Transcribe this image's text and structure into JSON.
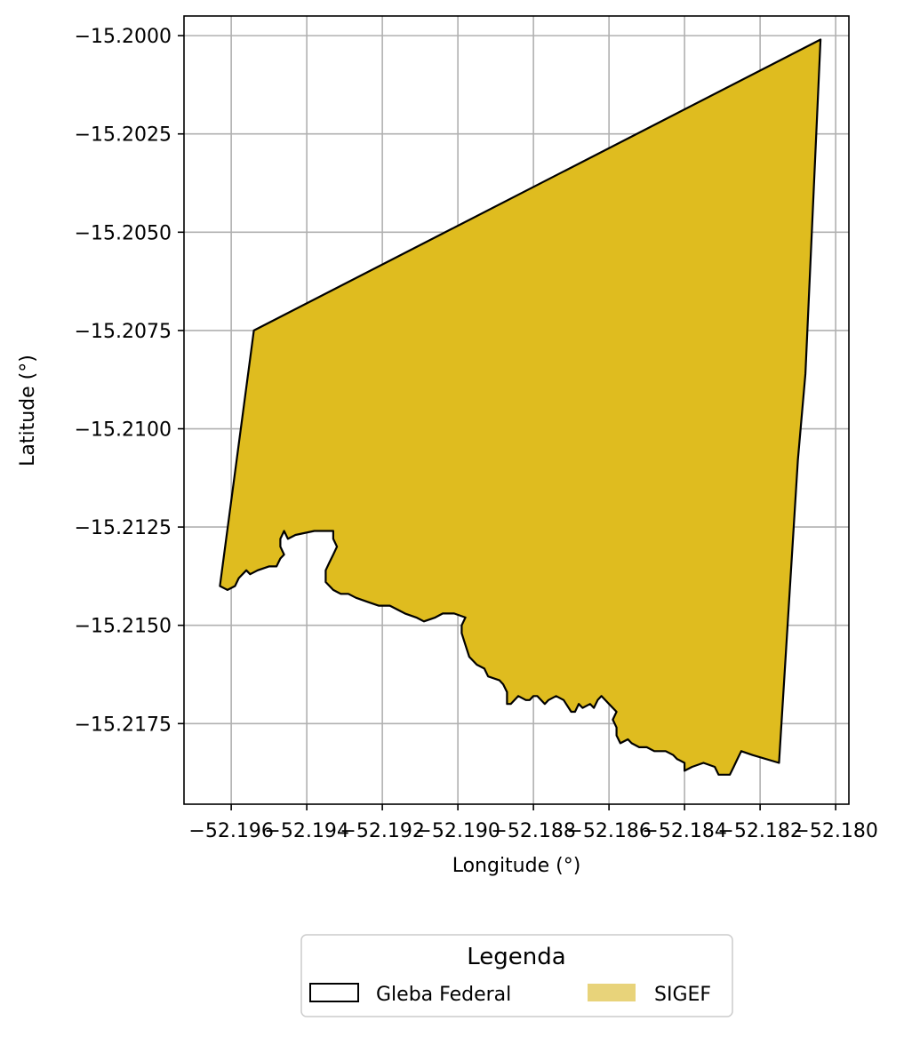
{
  "chart_data": {
    "type": "map",
    "xlabel": "Longitude (°)",
    "ylabel": "Latitude (°)",
    "xlim": [
      -52.19725,
      -52.17965
    ],
    "ylim": [
      -15.21955,
      -15.1995
    ],
    "xticks": [
      {
        "value": -52.196,
        "label": "−52.196"
      },
      {
        "value": -52.194,
        "label": "−52.194"
      },
      {
        "value": -52.192,
        "label": "−52.192"
      },
      {
        "value": -52.19,
        "label": "−52.190"
      },
      {
        "value": -52.188,
        "label": "−52.188"
      },
      {
        "value": -52.186,
        "label": "−52.186"
      },
      {
        "value": -52.184,
        "label": "−52.184"
      },
      {
        "value": -52.182,
        "label": "−52.182"
      },
      {
        "value": -52.18,
        "label": "−52.180"
      }
    ],
    "yticks": [
      {
        "value": -15.2,
        "label": "−15.2000"
      },
      {
        "value": -15.2025,
        "label": "−15.2025"
      },
      {
        "value": -15.205,
        "label": "−15.2050"
      },
      {
        "value": -15.2075,
        "label": "−15.2075"
      },
      {
        "value": -15.21,
        "label": "−15.2100"
      },
      {
        "value": -15.2125,
        "label": "−15.2125"
      },
      {
        "value": -15.215,
        "label": "−15.2150"
      },
      {
        "value": -15.2175,
        "label": "−15.2175"
      }
    ],
    "grid": true,
    "polygon": {
      "fill": "#dfbc1f",
      "edge": "#000000",
      "coords": [
        [
          -52.1954,
          -15.2075
        ],
        [
          -52.1804,
          -15.2001
        ],
        [
          -52.1808,
          -15.2086
        ],
        [
          -52.181,
          -15.2108
        ],
        [
          -52.1815,
          -15.2185
        ],
        [
          -52.1822,
          -15.2183
        ],
        [
          -52.1825,
          -15.2182
        ],
        [
          -52.1826,
          -15.2184
        ],
        [
          -52.1827,
          -15.2186
        ],
        [
          -52.1828,
          -15.2188
        ],
        [
          -52.1831,
          -15.2188
        ],
        [
          -52.1832,
          -15.2186
        ],
        [
          -52.1835,
          -15.2185
        ],
        [
          -52.1838,
          -15.2186
        ],
        [
          -52.184,
          -15.2187
        ],
        [
          -52.184,
          -15.2185
        ],
        [
          -52.1842,
          -15.2184
        ],
        [
          -52.1843,
          -15.2183
        ],
        [
          -52.1845,
          -15.2182
        ],
        [
          -52.1848,
          -15.2182
        ],
        [
          -52.185,
          -15.2181
        ],
        [
          -52.1852,
          -15.2181
        ],
        [
          -52.1854,
          -15.218
        ],
        [
          -52.1855,
          -15.2179
        ],
        [
          -52.1857,
          -15.218
        ],
        [
          -52.1858,
          -15.2178
        ],
        [
          -52.1858,
          -15.2176
        ],
        [
          -52.1859,
          -15.2174
        ],
        [
          -52.1858,
          -15.2172
        ],
        [
          -52.186,
          -15.217
        ],
        [
          -52.1861,
          -15.2169
        ],
        [
          -52.1862,
          -15.2168
        ],
        [
          -52.1863,
          -15.2169
        ],
        [
          -52.1864,
          -15.2171
        ],
        [
          -52.1865,
          -15.217
        ],
        [
          -52.1867,
          -15.2171
        ],
        [
          -52.1868,
          -15.217
        ],
        [
          -52.1869,
          -15.2172
        ],
        [
          -52.187,
          -15.2172
        ],
        [
          -52.1872,
          -15.2169
        ],
        [
          -52.1874,
          -15.2168
        ],
        [
          -52.1876,
          -15.2169
        ],
        [
          -52.1877,
          -15.217
        ],
        [
          -52.1879,
          -15.2168
        ],
        [
          -52.188,
          -15.2168
        ],
        [
          -52.1881,
          -15.2169
        ],
        [
          -52.1882,
          -15.2169
        ],
        [
          -52.1884,
          -15.2168
        ],
        [
          -52.1886,
          -15.217
        ],
        [
          -52.1887,
          -15.217
        ],
        [
          -52.1887,
          -15.2167
        ],
        [
          -52.1888,
          -15.2165
        ],
        [
          -52.1889,
          -15.2164
        ],
        [
          -52.1892,
          -15.2163
        ],
        [
          -52.1893,
          -15.2161
        ],
        [
          -52.1895,
          -15.216
        ],
        [
          -52.1897,
          -15.2158
        ],
        [
          -52.1898,
          -15.2155
        ],
        [
          -52.1899,
          -15.2152
        ],
        [
          -52.1899,
          -15.215
        ],
        [
          -52.1898,
          -15.2148
        ],
        [
          -52.1901,
          -15.2147
        ],
        [
          -52.1904,
          -15.2147
        ],
        [
          -52.1906,
          -15.2148
        ],
        [
          -52.1909,
          -15.2149
        ],
        [
          -52.1911,
          -15.2148
        ],
        [
          -52.1914,
          -15.2147
        ],
        [
          -52.1916,
          -15.2146
        ],
        [
          -52.1918,
          -15.2145
        ],
        [
          -52.1921,
          -15.2145
        ],
        [
          -52.1924,
          -15.2144
        ],
        [
          -52.1927,
          -15.2143
        ],
        [
          -52.1929,
          -15.2142
        ],
        [
          -52.1931,
          -15.2142
        ],
        [
          -52.1933,
          -15.2141
        ],
        [
          -52.1935,
          -15.2139
        ],
        [
          -52.1935,
          -15.2136
        ],
        [
          -52.1934,
          -15.2134
        ],
        [
          -52.1933,
          -15.2132
        ],
        [
          -52.1932,
          -15.213
        ],
        [
          -52.1933,
          -15.2128
        ],
        [
          -52.1933,
          -15.2126
        ],
        [
          -52.1938,
          -15.2126
        ],
        [
          -52.1943,
          -15.2127
        ],
        [
          -52.1945,
          -15.2128
        ],
        [
          -52.1946,
          -15.2126
        ],
        [
          -52.1947,
          -15.2128
        ],
        [
          -52.1947,
          -15.213
        ],
        [
          -52.1946,
          -15.2132
        ],
        [
          -52.1947,
          -15.2133
        ],
        [
          -52.1948,
          -15.2135
        ],
        [
          -52.195,
          -15.2135
        ],
        [
          -52.1953,
          -15.2136
        ],
        [
          -52.1955,
          -15.2137
        ],
        [
          -52.1956,
          -15.2136
        ],
        [
          -52.1958,
          -15.2138
        ],
        [
          -52.1959,
          -15.214
        ],
        [
          -52.1961,
          -15.2141
        ],
        [
          -52.1963,
          -15.214
        ]
      ]
    },
    "legend": {
      "title": "Legenda",
      "placement": "bottom-center",
      "entries": [
        {
          "label": "Gleba Federal",
          "swatch": "outline",
          "edge": "#000000"
        },
        {
          "label": "SIGEF",
          "swatch": "fill",
          "fill": "#e8d37a"
        }
      ]
    }
  }
}
